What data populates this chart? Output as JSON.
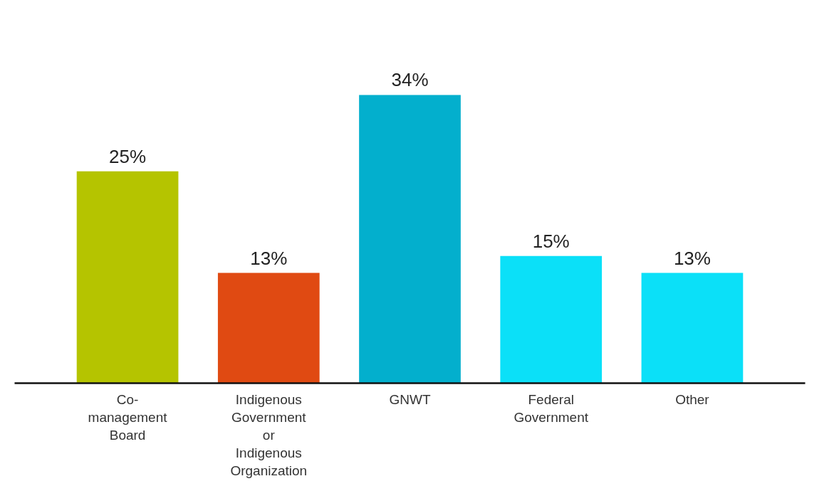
{
  "chart_data": {
    "type": "bar",
    "categories": [
      "Co-\nmanagement\nBoard",
      "Indigenous\nGovernment\nor\nIndigenous\nOrganization",
      "GNWT",
      "Federal\nGovernment",
      "Other"
    ],
    "values": [
      25,
      13,
      34,
      15,
      13
    ],
    "value_labels": [
      "25%",
      "13%",
      "34%",
      "15%",
      "13%"
    ],
    "colors": [
      "#b5c400",
      "#e04a12",
      "#03afcd",
      "#0be0f8",
      "#0be0f8"
    ],
    "grid": false
  }
}
